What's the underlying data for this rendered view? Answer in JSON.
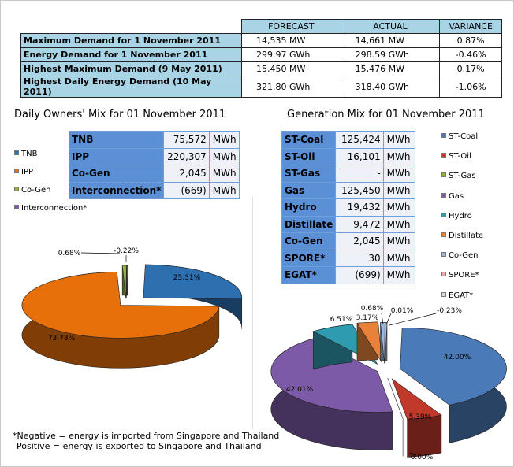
{
  "summary": {
    "headers": [
      "",
      "FORECAST",
      "ACTUAL",
      "VARIANCE"
    ],
    "rows": [
      {
        "label": "Maximum Demand for 1 November 2011",
        "forecast": "14,535  MW",
        "actual": "14,661  MW",
        "variance": "0.87%"
      },
      {
        "label": "Energy Demand for 1 November 2011",
        "forecast": "299.97  GWh",
        "actual": "298.59  GWh",
        "variance": "-0.46%"
      },
      {
        "label": "Highest Maximum Demand (9 May 2011)",
        "forecast": "15,450  MW",
        "actual": "15,476  MW",
        "variance": "0.17%"
      },
      {
        "label": "Highest Daily Energy Demand (10 May 2011)",
        "forecast": "321.80  GWh",
        "actual": "318.40  GWh",
        "variance": "-1.06%"
      }
    ]
  },
  "owners": {
    "title": "Daily Owners' Mix for 01 November 2011",
    "table": [
      {
        "name": "TNB",
        "value": "75,572",
        "unit": "MWh"
      },
      {
        "name": "IPP",
        "value": "220,307",
        "unit": "MWh"
      },
      {
        "name": "Co-Gen",
        "value": "2,045",
        "unit": "MWh"
      },
      {
        "name": "Interconnection*",
        "value": "(669)",
        "unit": "MWh"
      }
    ]
  },
  "generation": {
    "title": "Generation Mix for 01 November 2011",
    "table": [
      {
        "name": "ST-Coal",
        "value": "125,424",
        "unit": "MWh"
      },
      {
        "name": "ST-Oil",
        "value": "16,101",
        "unit": "MWh"
      },
      {
        "name": "ST-Gas",
        "value": "-",
        "unit": "MWh"
      },
      {
        "name": "Gas",
        "value": "125,450",
        "unit": "MWh"
      },
      {
        "name": "Hydro",
        "value": "19,432",
        "unit": "MWh"
      },
      {
        "name": "Distillate",
        "value": "9,472",
        "unit": "MWh"
      },
      {
        "name": "Co-Gen",
        "value": "2,045",
        "unit": "MWh"
      },
      {
        "name": "SPORE*",
        "value": "30",
        "unit": "MWh"
      },
      {
        "name": "EGAT*",
        "value": "(699)",
        "unit": "MWh"
      }
    ]
  },
  "chart_data": [
    {
      "type": "pie",
      "title": "Daily Owners' Mix for 01 November 2011",
      "legend_position": "left",
      "categories": [
        "TNB",
        "IPP",
        "Co-Gen",
        "Interconnection*"
      ],
      "values": [
        25.31,
        73.78,
        0.68,
        -0.22
      ],
      "labels": [
        "25.31%",
        "73.78%",
        "0.68%",
        "-0.22%"
      ],
      "colors": [
        "#2e6fb0",
        "#e8700a",
        "#8fb03a",
        "#7a5aa6"
      ]
    },
    {
      "type": "pie",
      "title": "Generation Mix for 01 November 2011",
      "legend_position": "right",
      "categories": [
        "ST-Coal",
        "ST-Oil",
        "ST-Gas",
        "Gas",
        "Hydro",
        "Distillate",
        "Co-Gen",
        "SPORE*",
        "EGAT*"
      ],
      "values": [
        42.0,
        5.39,
        0.0,
        42.01,
        6.51,
        3.17,
        0.68,
        0.01,
        -0.23
      ],
      "labels": [
        "42.00%",
        "5.39%",
        "0.00%",
        "42.01%",
        "6.51%",
        "3.17%",
        "0.68%",
        "0.01%",
        "-0.23%"
      ],
      "colors": [
        "#4a7ab8",
        "#c0392b",
        "#8fb03a",
        "#7c5aa8",
        "#2f9bb0",
        "#e8823a",
        "#9bb7dc",
        "#e6a8a0",
        "#dcdcdc"
      ]
    }
  ],
  "note": {
    "line1": "*Negative = energy is imported from Singapore and Thailand",
    "line2": "Positive = energy is exported to Singapore and Thailand"
  }
}
